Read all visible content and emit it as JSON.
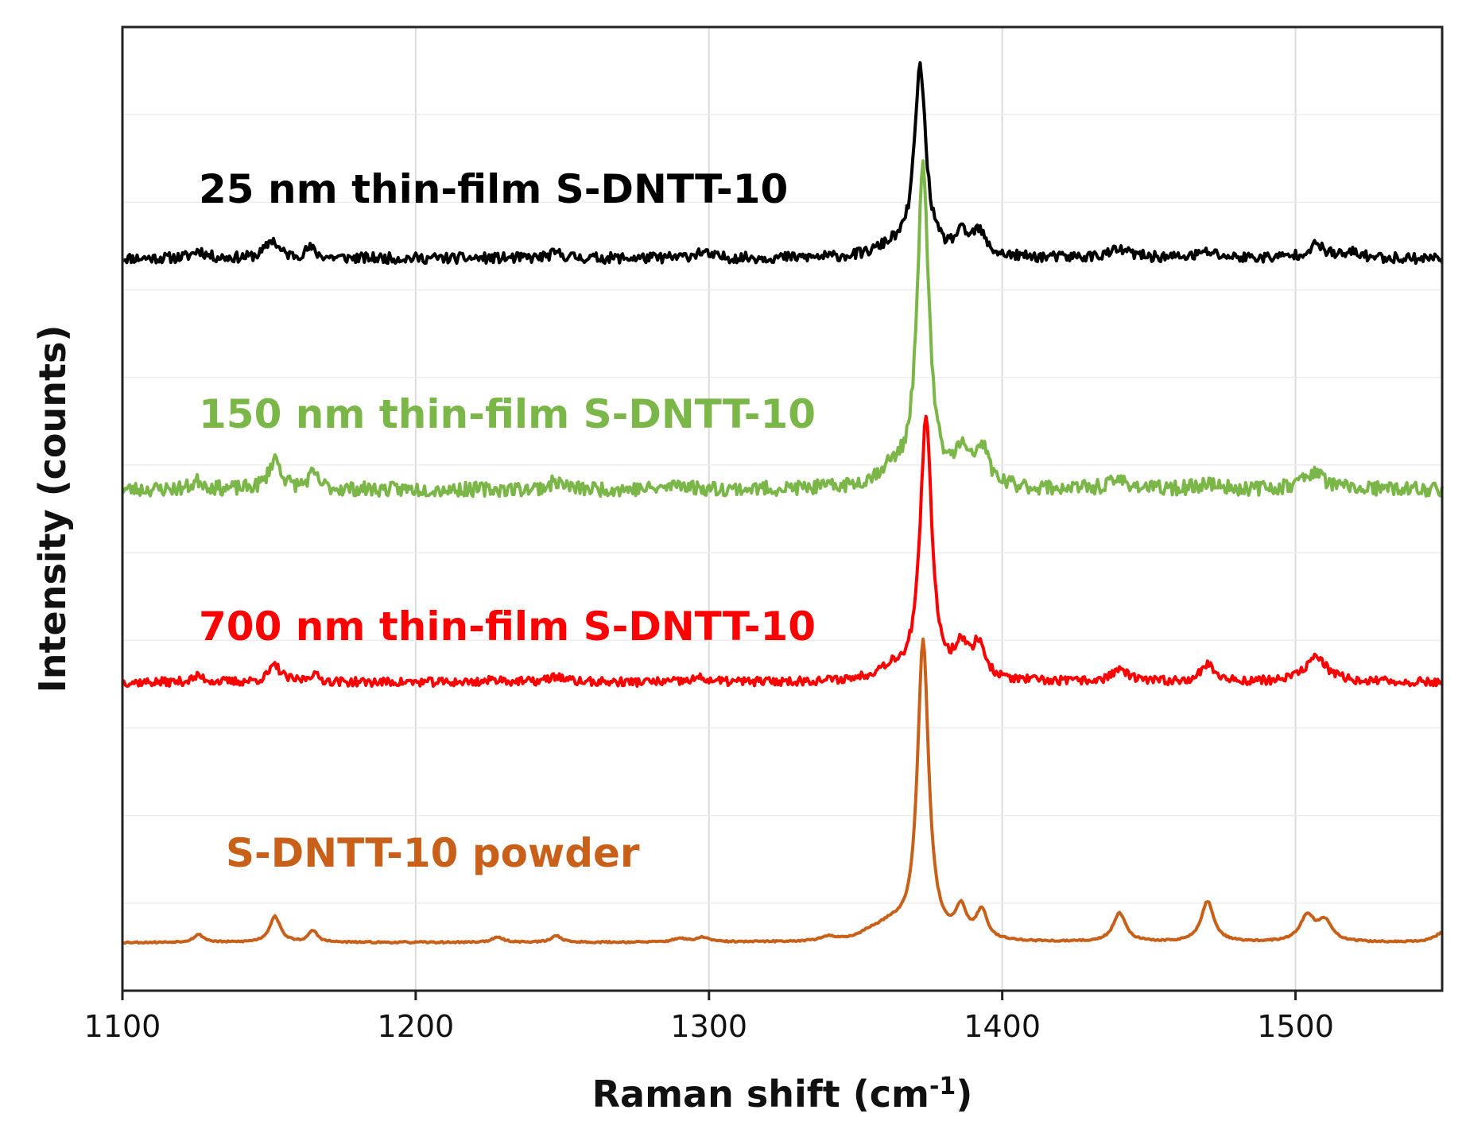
{
  "chart_data": {
    "type": "line",
    "title": "",
    "xlabel": "Raman shift (cm",
    "xlabel_sup": "-1",
    "xlabel_close": ")",
    "ylabel": "Intensity (counts)",
    "xlim": [
      1100,
      1550
    ],
    "ylim": [
      0,
      100
    ],
    "xticks": [
      "1100",
      "1200",
      "1300",
      "1400",
      "1500"
    ],
    "grid": true,
    "y_tick_labels": false,
    "series": [
      {
        "name": "25 nm thin-film S-DNTT-10",
        "color": "#000000",
        "baseline": 76,
        "noise": 0.55,
        "seed": 11,
        "peaks": [
          [
            1126,
            0.8,
            2.5
          ],
          [
            1151,
            1.9,
            2.5
          ],
          [
            1164,
            1.0,
            2.2
          ],
          [
            1248,
            0.5,
            3
          ],
          [
            1297,
            0.6,
            3
          ],
          [
            1362,
            1.0,
            6
          ],
          [
            1372,
            19.5,
            2.4
          ],
          [
            1386,
            2.0,
            2.8
          ],
          [
            1392,
            2.4,
            2.8
          ],
          [
            1440,
            0.8,
            5
          ],
          [
            1470,
            0.6,
            4
          ],
          [
            1507,
            1.3,
            4
          ],
          [
            1520,
            0.5,
            3
          ]
        ]
      },
      {
        "name": "150 nm thin-film S-DNTT-10",
        "color": "#7ab648",
        "baseline": 52,
        "noise": 0.75,
        "seed": 23,
        "peaks": [
          [
            1126,
            0.9,
            2.5
          ],
          [
            1152,
            3.2,
            2.5
          ],
          [
            1165,
            1.5,
            2.2
          ],
          [
            1248,
            0.8,
            3
          ],
          [
            1290,
            0.6,
            3
          ],
          [
            1362,
            1.6,
            6
          ],
          [
            1373,
            33,
            2.4
          ],
          [
            1386,
            3.2,
            2.8
          ],
          [
            1393,
            4.0,
            2.8
          ],
          [
            1440,
            0.9,
            4
          ],
          [
            1470,
            0.6,
            4
          ],
          [
            1506,
            1.8,
            4.5
          ]
        ]
      },
      {
        "name": "700 nm thin-film S-DNTT-10",
        "color": "#ff0000",
        "baseline": 32,
        "noise": 0.45,
        "seed": 37,
        "peaks": [
          [
            1126,
            0.6,
            2.5
          ],
          [
            1152,
            1.7,
            2.5
          ],
          [
            1165,
            0.8,
            2.2
          ],
          [
            1228,
            0.3,
            3
          ],
          [
            1248,
            0.6,
            3
          ],
          [
            1297,
            0.4,
            3
          ],
          [
            1362,
            1.2,
            6
          ],
          [
            1374,
            27,
            2.4
          ],
          [
            1386,
            3.2,
            2.6
          ],
          [
            1392,
            3.6,
            2.6
          ],
          [
            1440,
            1.3,
            3.2
          ],
          [
            1470,
            1.8,
            3.0
          ],
          [
            1507,
            2.6,
            4.5
          ]
        ]
      },
      {
        "name": "S-DNTT-10 powder",
        "color": "#c8601a",
        "baseline": 5,
        "noise": 0.08,
        "seed": 53,
        "peaks": [
          [
            1126,
            0.8,
            2.2
          ],
          [
            1152,
            2.7,
            2.2
          ],
          [
            1165,
            1.2,
            1.8
          ],
          [
            1228,
            0.5,
            2.5
          ],
          [
            1248,
            0.7,
            2
          ],
          [
            1290,
            0.4,
            2.5
          ],
          [
            1298,
            0.5,
            2.5
          ],
          [
            1341,
            0.4,
            3
          ],
          [
            1355,
            0.5,
            4
          ],
          [
            1362,
            1.5,
            6
          ],
          [
            1373,
            31,
            2.3
          ],
          [
            1386,
            3.0,
            2.2
          ],
          [
            1393,
            3.0,
            2.2
          ],
          [
            1440,
            3.0,
            2.6
          ],
          [
            1470,
            4.2,
            2.6
          ],
          [
            1504,
            2.6,
            3.0
          ],
          [
            1510,
            2.0,
            3.0
          ],
          [
            1550,
            1.0,
            3
          ]
        ]
      }
    ]
  }
}
